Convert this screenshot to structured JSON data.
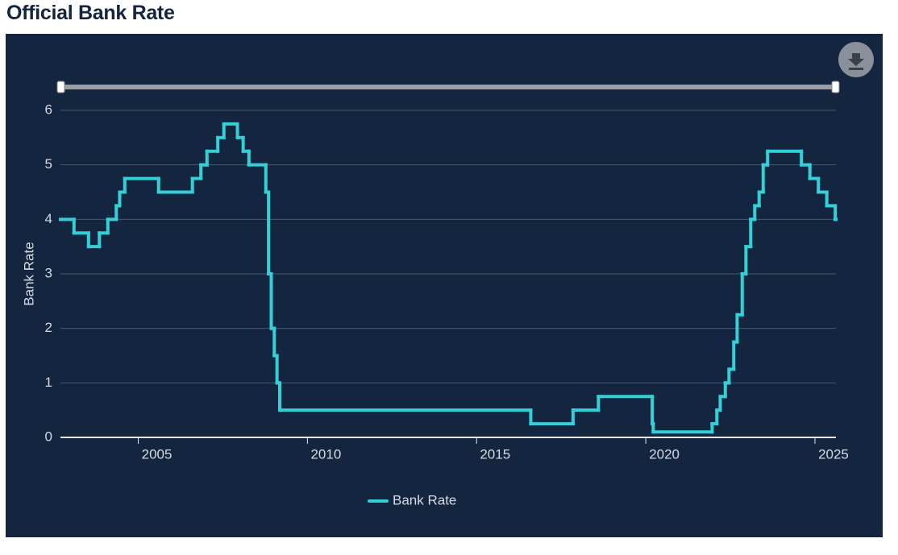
{
  "chart_data": {
    "type": "step-line",
    "title": "Official Bank Rate",
    "y_label": "Bank Rate",
    "x": [
      2002.7,
      2003.1,
      2003.53,
      2003.85,
      2004.1,
      2004.35,
      2004.45,
      2004.6,
      2005.6,
      2006.6,
      2006.85,
      2007.03,
      2007.35,
      2007.53,
      2007.93,
      2008.1,
      2008.27,
      2008.77,
      2008.85,
      2008.93,
      2009.02,
      2009.1,
      2009.18,
      2016.6,
      2017.85,
      2018.6,
      2020.19,
      2020.22,
      2021.96,
      2022.1,
      2022.2,
      2022.35,
      2022.46,
      2022.6,
      2022.7,
      2022.85,
      2022.96,
      2023.1,
      2023.22,
      2023.35,
      2023.47,
      2023.6,
      2024.6,
      2024.85,
      2025.1,
      2025.35,
      2025.6
    ],
    "series": [
      {
        "name": "Bank Rate",
        "color": "#33d0d8",
        "values": [
          4.0,
          3.75,
          3.5,
          3.75,
          4.0,
          4.25,
          4.5,
          4.75,
          4.5,
          4.75,
          5.0,
          5.25,
          5.5,
          5.75,
          5.5,
          5.25,
          5.0,
          4.5,
          3.0,
          2.0,
          1.5,
          1.0,
          0.5,
          0.25,
          0.5,
          0.75,
          0.25,
          0.1,
          0.25,
          0.5,
          0.75,
          1.0,
          1.25,
          1.75,
          2.25,
          3.0,
          3.5,
          4.0,
          4.25,
          4.5,
          5.0,
          5.25,
          5.0,
          4.75,
          4.5,
          4.25,
          4.0
        ]
      }
    ],
    "xlim": [
      2002.7,
      2025.62
    ],
    "xticks": [
      2005,
      2010,
      2015,
      2020,
      2025
    ],
    "ylim": [
      0,
      6
    ],
    "yticks": [
      0,
      1,
      2,
      3,
      4,
      5,
      6
    ],
    "grid": true
  }
}
